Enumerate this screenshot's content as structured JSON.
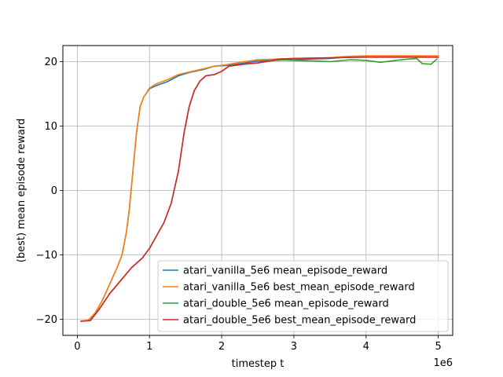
{
  "chart_data": {
    "type": "line",
    "title": "",
    "xlabel": "timestep t",
    "ylabel": "(best) mean episode reward",
    "x_offset_label": "1e6",
    "xlim": [
      -0.2,
      5.2
    ],
    "ylim": [
      -22.5,
      22.5
    ],
    "xticks": [
      0,
      1,
      2,
      3,
      4,
      5
    ],
    "xtick_labels": [
      "0",
      "1",
      "2",
      "3",
      "4",
      "5"
    ],
    "yticks": [
      -20,
      -10,
      0,
      10,
      20
    ],
    "ytick_labels": [
      "−20",
      "−10",
      "0",
      "10",
      "20"
    ],
    "x_unit": "millions of timesteps",
    "grid": true,
    "legend_position": "lower-right",
    "series": [
      {
        "name": "atari_vanilla_5e6 mean_episode_reward",
        "color": "#1f77b4",
        "x": [
          0.05,
          0.15,
          0.25,
          0.35,
          0.45,
          0.55,
          0.62,
          0.68,
          0.72,
          0.77,
          0.82,
          0.87,
          0.92,
          1.0,
          1.1,
          1.25,
          1.4,
          1.55,
          1.75,
          1.9,
          2.05,
          2.2,
          2.5,
          3.0,
          3.5,
          3.7,
          4.0,
          4.5,
          5.0
        ],
        "y": [
          -20.3,
          -20.2,
          -19.0,
          -17.0,
          -14.5,
          -12.0,
          -10.0,
          -6.5,
          -3.0,
          3.0,
          9.0,
          13.0,
          14.5,
          15.8,
          16.3,
          16.9,
          17.8,
          18.3,
          18.8,
          19.3,
          19.4,
          19.6,
          20.1,
          20.3,
          20.5,
          20.7,
          20.8,
          20.8,
          20.7
        ]
      },
      {
        "name": "atari_vanilla_5e6 best_mean_episode_reward",
        "color": "#ff7f0e",
        "x": [
          0.05,
          0.15,
          0.25,
          0.35,
          0.45,
          0.55,
          0.62,
          0.68,
          0.72,
          0.77,
          0.82,
          0.87,
          0.92,
          1.0,
          1.1,
          1.25,
          1.4,
          1.55,
          1.75,
          1.9,
          2.05,
          2.2,
          2.5,
          3.0,
          3.5,
          3.7,
          4.0,
          4.5,
          5.0
        ],
        "y": [
          -20.3,
          -20.2,
          -19.0,
          -17.0,
          -14.5,
          -12.0,
          -10.0,
          -6.5,
          -3.0,
          3.0,
          9.0,
          13.0,
          14.5,
          15.9,
          16.6,
          17.2,
          18.0,
          18.4,
          18.9,
          19.3,
          19.5,
          19.8,
          20.3,
          20.5,
          20.6,
          20.8,
          20.9,
          20.9,
          20.9
        ]
      },
      {
        "name": "atari_double_5e6 mean_episode_reward",
        "color": "#2ca02c",
        "x": [
          0.05,
          0.18,
          0.3,
          0.45,
          0.6,
          0.75,
          0.9,
          1.0,
          1.1,
          1.2,
          1.3,
          1.4,
          1.48,
          1.55,
          1.62,
          1.7,
          1.78,
          1.9,
          2.0,
          2.1,
          2.3,
          2.5,
          2.8,
          3.0,
          3.3,
          3.5,
          3.8,
          4.0,
          4.2,
          4.35,
          4.5,
          4.6,
          4.7,
          4.78,
          4.9,
          4.98
        ],
        "y": [
          -20.3,
          -20.2,
          -18.5,
          -16.0,
          -14.0,
          -12.0,
          -10.5,
          -9.0,
          -7.0,
          -5.0,
          -2.0,
          3.0,
          9.0,
          13.0,
          15.5,
          17.0,
          17.8,
          18.0,
          18.5,
          19.3,
          19.6,
          19.8,
          20.3,
          20.2,
          20.1,
          20.0,
          20.3,
          20.2,
          19.9,
          20.1,
          20.3,
          20.4,
          20.5,
          19.7,
          19.6,
          20.4
        ]
      },
      {
        "name": "atari_double_5e6 best_mean_episode_reward",
        "color": "#d62728",
        "x": [
          0.05,
          0.18,
          0.3,
          0.45,
          0.6,
          0.75,
          0.9,
          1.0,
          1.1,
          1.2,
          1.3,
          1.4,
          1.48,
          1.55,
          1.62,
          1.7,
          1.78,
          1.9,
          2.0,
          2.1,
          2.3,
          2.5,
          2.8,
          3.0,
          3.5,
          4.0,
          4.5,
          5.0
        ],
        "y": [
          -20.3,
          -20.2,
          -18.5,
          -16.0,
          -14.0,
          -12.0,
          -10.5,
          -9.0,
          -7.0,
          -5.0,
          -2.0,
          3.0,
          9.0,
          13.0,
          15.5,
          17.0,
          17.8,
          18.0,
          18.5,
          19.3,
          19.6,
          19.8,
          20.4,
          20.5,
          20.6,
          20.7,
          20.7,
          20.7
        ]
      }
    ]
  }
}
